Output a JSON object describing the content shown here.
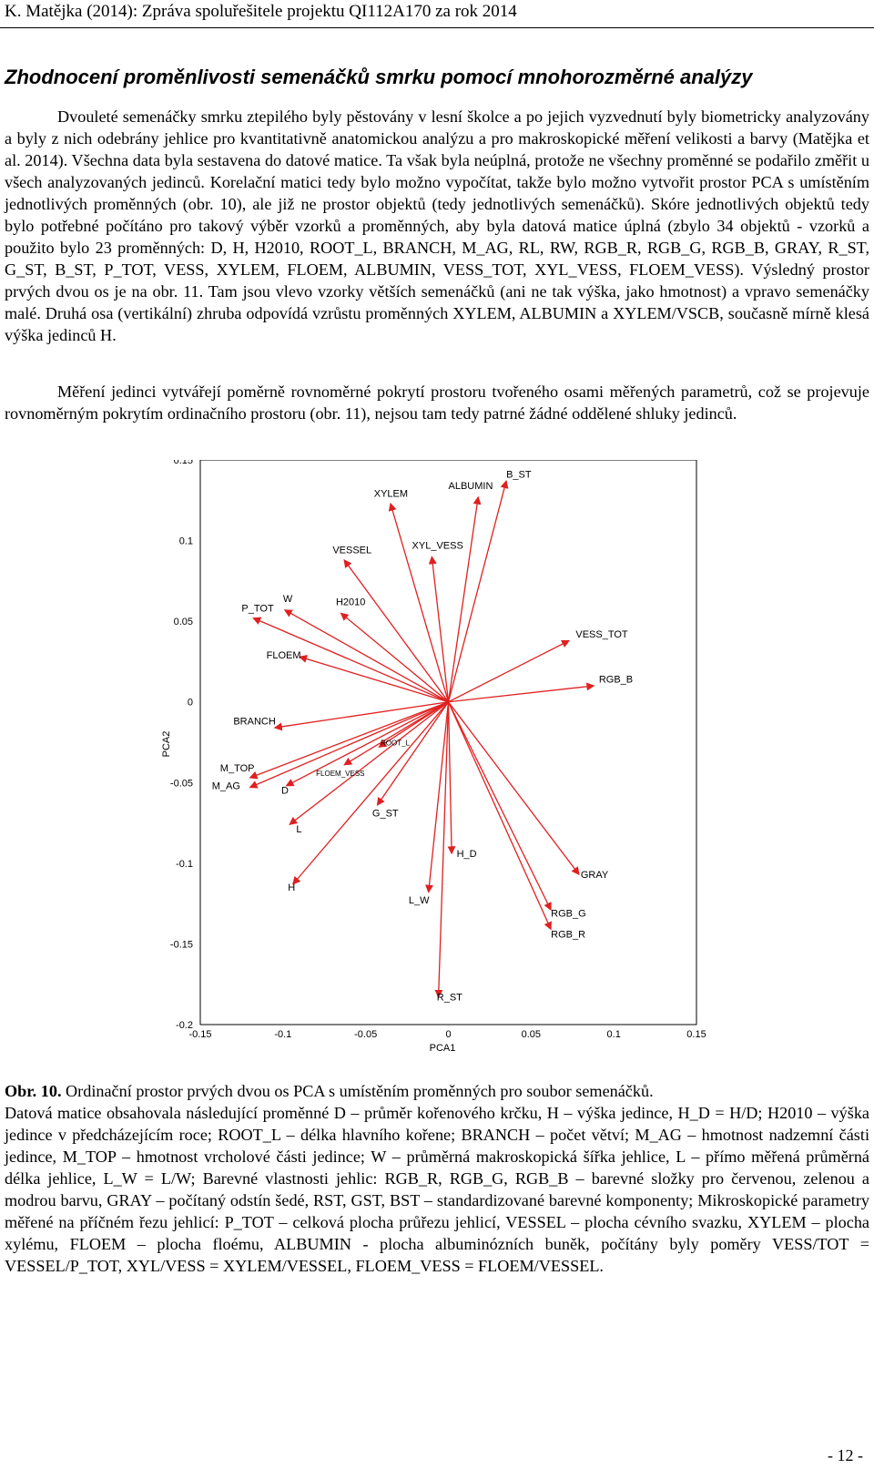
{
  "header": {
    "text": "K. Matějka (2014): Zpráva spoluřešitele projektu QI112A170 za rok 2014"
  },
  "section_title": "Zhodnocení proměnlivosti semenáčků smrku pomocí mnohorozměrné analýzy",
  "paragraphs": {
    "p1": "Dvouleté semenáčky smrku ztepilého byly pěstovány v lesní školce a po jejich vyzvednutí byly biometricky analyzovány a byly z nich odebrány jehlice pro kvantitativně anatomickou analýzu a pro makroskopické měření velikosti a barvy (Matějka et al. 2014). Všechna data byla sestavena do datové matice. Ta však byla neúplná, protože ne všechny proměnné se podařilo změřit u všech analyzovaných jedinců. Korelační matici tedy bylo možno vypočítat, takže bylo možno vytvořit prostor PCA s umístěním jednotlivých proměnných (obr. 10), ale již ne prostor objektů (tedy jednotlivých semenáčků). Skóre jednotlivých objektů tedy bylo potřebné počítáno pro takový výběr vzorků a proměnných, aby byla datová matice úplná (zbylo 34 objektů - vzorků a použito bylo 23 proměnných: D, H, H2010, ROOT_L, BRANCH, M_AG, RL, RW, RGB_R, RGB_G, RGB_B, GRAY, R_ST, G_ST, B_ST, P_TOT, VESS, XYLEM, FLOEM, ALBUMIN, VESS_TOT, XYL_VESS, FLOEM_VESS). Výsledný prostor prvých dvou os je na obr. 11. Tam jsou vlevo vzorky větších semenáčků (ani ne tak výška, jako hmotnost) a vpravo semenáčky malé. Druhá osa (vertikální) zhruba odpovídá vzrůstu proměnných XYLEM, ALBUMIN a XYLEM/VSCB, současně mírně klesá výška jedinců H.",
    "p2": "Měření jedinci vytvářejí poměrně rovnoměrné pokrytí prostoru tvořeného osami měřených parametrů, což se projevuje rovnoměrným pokrytím ordinačního prostoru (obr. 11), nejsou tam tedy patrné žádné oddělené shluky jedinců."
  },
  "caption": {
    "label": "Obr. 10.",
    "text": " Ordinační prostor prvých dvou os PCA s umístěním proměnných pro soubor semenáčků.",
    "description": "Datová matice obsahovala následující proměnné D – průměr kořenového krčku, H – výška jedince, H_D = H/D; H2010 – výška jedince v předcházejícím roce; ROOT_L – délka hlavního kořene; BRANCH – počet větví; M_AG – hmotnost nadzemní části jedince, M_TOP – hmotnost vrcholové části jedince; W – průměrná makroskopická šířka jehlice, L – přímo měřená průměrná délka jehlice, L_W = L/W; Barevné vlastnosti jehlic: RGB_R, RGB_G, RGB_B – barevné složky pro červenou, zelenou a modrou barvu, GRAY – počítaný odstín šedé, RST, GST, BST – standardizované barevné komponenty; Mikroskopické parametry měřené na příčném řezu jehlicí: P_TOT – celková plocha průřezu jehlicí, VESSEL – plocha cévního svazku, XYLEM – plocha xylému, FLOEM – plocha floému, ALBUMIN - plocha albuminózních buněk, počítány byly poměry VESS/TOT = VESSEL/P_TOT, XYL/VESS = XYLEM/VESSEL, FLOEM_VESS = FLOEM/VESSEL."
  },
  "page_number": "- 12 -",
  "chart_data": {
    "type": "scatter",
    "subtype": "biplot-vectors",
    "xlabel": "PCA1",
    "ylabel": "PCA2",
    "xlim": [
      -0.15,
      0.15
    ],
    "ylim": [
      -0.2,
      0.15
    ],
    "xticks": [
      "-0.15",
      "-0.1",
      "-0.05",
      "0",
      "0.05",
      "0.1",
      "0.15"
    ],
    "yticks": [
      "0.15",
      "0.1",
      "0.05",
      "0",
      "-0.05",
      "-0.1",
      "-0.15",
      "-0.2"
    ],
    "origin": [
      0,
      0
    ],
    "arrow_color": "#e02020",
    "vectors": [
      {
        "name": "B_ST",
        "x": 0.035,
        "y": 0.137
      },
      {
        "name": "ALBUMIN",
        "x": 0.018,
        "y": 0.127
      },
      {
        "name": "XYLEM",
        "x": -0.035,
        "y": 0.123
      },
      {
        "name": "XYL_VESS",
        "x": -0.01,
        "y": 0.09
      },
      {
        "name": "VESSEL",
        "x": -0.063,
        "y": 0.088
      },
      {
        "name": "W",
        "x": -0.099,
        "y": 0.057
      },
      {
        "name": "H2010",
        "x": -0.065,
        "y": 0.055
      },
      {
        "name": "P_TOT",
        "x": -0.118,
        "y": 0.052
      },
      {
        "name": "VESS_TOT",
        "x": 0.073,
        "y": 0.038
      },
      {
        "name": "FLOEM",
        "x": -0.09,
        "y": 0.028
      },
      {
        "name": "RGB_B",
        "x": 0.088,
        "y": 0.01
      },
      {
        "name": "BRANCH",
        "x": -0.105,
        "y": -0.016
      },
      {
        "name": "ROOT_L",
        "x": -0.042,
        "y": -0.028
      },
      {
        "name": "FLOEM_VESS",
        "x": -0.063,
        "y": -0.039
      },
      {
        "name": "M_TOP",
        "x": -0.12,
        "y": -0.047
      },
      {
        "name": "M_AG",
        "x": -0.12,
        "y": -0.053
      },
      {
        "name": "D",
        "x": -0.098,
        "y": -0.052
      },
      {
        "name": "G_ST",
        "x": -0.043,
        "y": -0.064
      },
      {
        "name": "L",
        "x": -0.096,
        "y": -0.076
      },
      {
        "name": "H_D",
        "x": 0.002,
        "y": -0.094
      },
      {
        "name": "GRAY",
        "x": 0.079,
        "y": -0.107
      },
      {
        "name": "H",
        "x": -0.094,
        "y": -0.113
      },
      {
        "name": "L_W",
        "x": -0.012,
        "y": -0.118
      },
      {
        "name": "RGB_G",
        "x": 0.062,
        "y": -0.129
      },
      {
        "name": "RGB_R",
        "x": 0.062,
        "y": -0.141
      },
      {
        "name": "R_ST",
        "x": -0.006,
        "y": -0.183
      }
    ],
    "labels": [
      {
        "name": "B_ST",
        "x": 0.035,
        "y": 0.139
      },
      {
        "name": "ALBUMIN",
        "x": 0.0,
        "y": 0.132
      },
      {
        "name": "XYLEM",
        "x": -0.045,
        "y": 0.127
      },
      {
        "name": "XYL_VESS",
        "x": -0.022,
        "y": 0.095
      },
      {
        "name": "VESSEL",
        "x": -0.07,
        "y": 0.092
      },
      {
        "name": "W",
        "x": -0.1,
        "y": 0.062
      },
      {
        "name": "H2010",
        "x": -0.068,
        "y": 0.06
      },
      {
        "name": "P_TOT",
        "x": -0.125,
        "y": 0.056
      },
      {
        "name": "VESS_TOT",
        "x": 0.077,
        "y": 0.04
      },
      {
        "name": "FLOEM",
        "x": -0.11,
        "y": 0.027
      },
      {
        "name": "RGB_B",
        "x": 0.091,
        "y": 0.012
      },
      {
        "name": "BRANCH",
        "x": -0.13,
        "y": -0.014
      },
      {
        "name": "ROOT_L",
        "x": -0.041,
        "y": -0.027
      },
      {
        "name": "FLOEM_VESS",
        "x": -0.08,
        "y": -0.046
      },
      {
        "name": "M_TOP",
        "x": -0.138,
        "y": -0.043
      },
      {
        "name": "M_AG",
        "x": -0.143,
        "y": -0.054
      },
      {
        "name": "D",
        "x": -0.101,
        "y": -0.057
      },
      {
        "name": "G_ST",
        "x": -0.046,
        "y": -0.071
      },
      {
        "name": "L",
        "x": -0.092,
        "y": -0.081
      },
      {
        "name": "H_D",
        "x": 0.005,
        "y": -0.096
      },
      {
        "name": "GRAY",
        "x": 0.08,
        "y": -0.109
      },
      {
        "name": "H",
        "x": -0.097,
        "y": -0.117
      },
      {
        "name": "L_W",
        "x": -0.024,
        "y": -0.125
      },
      {
        "name": "RGB_G",
        "x": 0.062,
        "y": -0.133
      },
      {
        "name": "RGB_R",
        "x": 0.062,
        "y": -0.146
      },
      {
        "name": "R_ST",
        "x": -0.007,
        "y": -0.185
      }
    ],
    "grid": false
  }
}
